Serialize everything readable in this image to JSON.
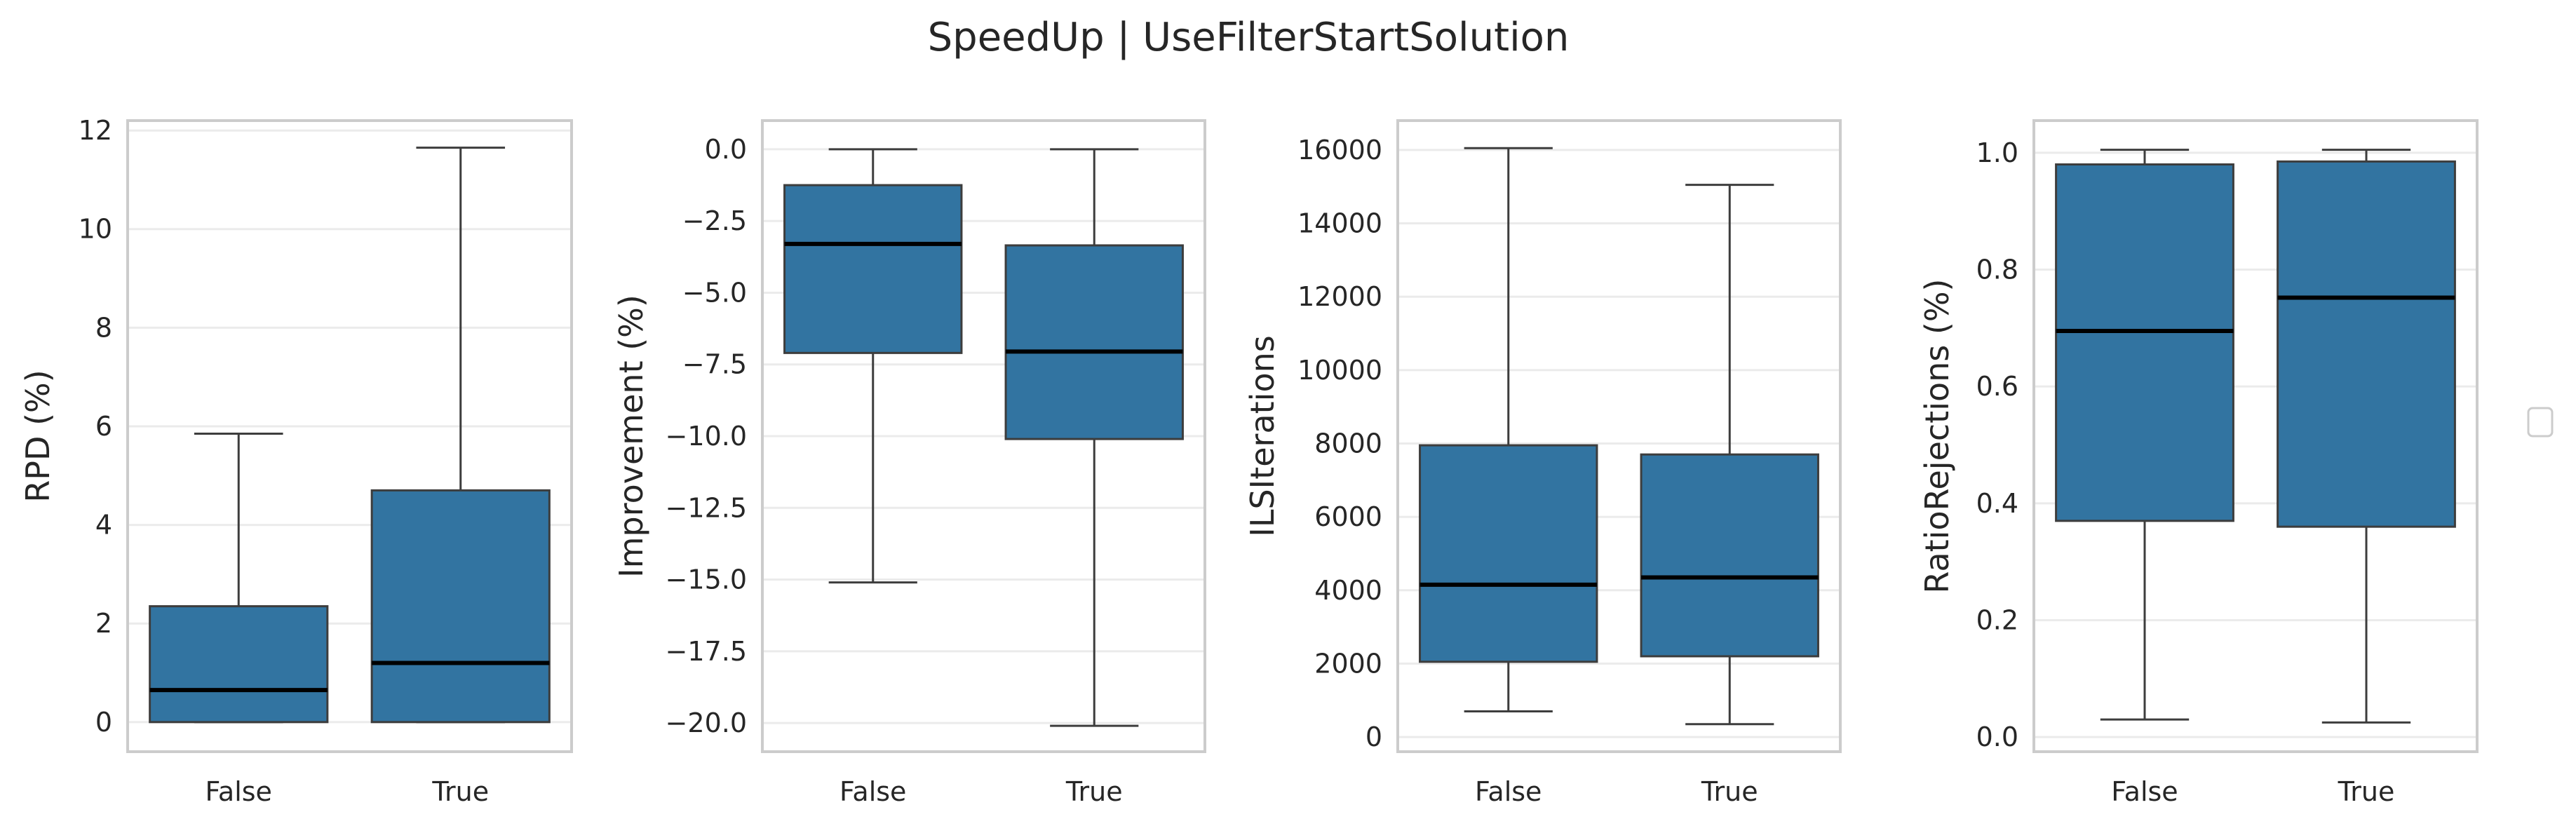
{
  "suptitle": "SpeedUp | UseFilterStartSolution",
  "chart_data": [
    {
      "type": "box",
      "xlabel": "",
      "ylabel": "RPD (%)",
      "categories": [
        "False",
        "True"
      ],
      "ylim": [
        -0.6,
        12.2
      ],
      "yticks": [
        0,
        2,
        4,
        6,
        8,
        10,
        12
      ],
      "ytick_labels": [
        "0",
        "2",
        "4",
        "6",
        "8",
        "10",
        "12"
      ],
      "boxes": [
        {
          "category": "False",
          "whisker_low": 0.0,
          "q1": 0.0,
          "median": 0.65,
          "q3": 2.35,
          "whisker_high": 5.85
        },
        {
          "category": "True",
          "whisker_low": 0.0,
          "q1": 0.0,
          "median": 1.2,
          "q3": 4.7,
          "whisker_high": 11.65
        }
      ],
      "grid": "y"
    },
    {
      "type": "box",
      "xlabel": "",
      "ylabel": "Improvement (%)",
      "categories": [
        "False",
        "True"
      ],
      "ylim": [
        -21.0,
        1.0
      ],
      "yticks": [
        0.0,
        -2.5,
        -5.0,
        -7.5,
        -10.0,
        -12.5,
        -15.0,
        -17.5,
        -20.0
      ],
      "ytick_labels": [
        "0.0",
        "−2.5",
        "−5.0",
        "−7.5",
        "−10.0",
        "−12.5",
        "−15.0",
        "−17.5",
        "−20.0"
      ],
      "boxes": [
        {
          "category": "False",
          "whisker_low": -15.1,
          "q1": -7.1,
          "median": -3.3,
          "q3": -1.25,
          "whisker_high": 0.0
        },
        {
          "category": "True",
          "whisker_low": -20.1,
          "q1": -10.1,
          "median": -7.05,
          "q3": -3.35,
          "whisker_high": 0.0
        }
      ],
      "grid": "y"
    },
    {
      "type": "box",
      "xlabel": "",
      "ylabel": "ILSIterations",
      "categories": [
        "False",
        "True"
      ],
      "ylim": [
        -400,
        16800
      ],
      "yticks": [
        0,
        2000,
        4000,
        6000,
        8000,
        10000,
        12000,
        14000,
        16000
      ],
      "ytick_labels": [
        "0",
        "2000",
        "4000",
        "6000",
        "8000",
        "10000",
        "12000",
        "14000",
        "16000"
      ],
      "boxes": [
        {
          "category": "False",
          "whisker_low": 700,
          "q1": 2050,
          "median": 4150,
          "q3": 7950,
          "whisker_high": 16050
        },
        {
          "category": "True",
          "whisker_low": 350,
          "q1": 2200,
          "median": 4350,
          "q3": 7700,
          "whisker_high": 15050
        }
      ],
      "grid": "y"
    },
    {
      "type": "box",
      "xlabel": "",
      "ylabel": "RatioRejections (%)",
      "categories": [
        "False",
        "True"
      ],
      "ylim": [
        -0.025,
        1.055
      ],
      "yticks": [
        0.0,
        0.2,
        0.4,
        0.6,
        0.8,
        1.0
      ],
      "ytick_labels": [
        "0.0",
        "0.2",
        "0.4",
        "0.6",
        "0.8",
        "1.0"
      ],
      "boxes": [
        {
          "category": "False",
          "whisker_low": 0.03,
          "q1": 0.37,
          "median": 0.695,
          "q3": 0.98,
          "whisker_high": 1.005
        },
        {
          "category": "True",
          "whisker_low": 0.025,
          "q1": 0.36,
          "median": 0.752,
          "q3": 0.985,
          "whisker_high": 1.005
        }
      ],
      "grid": "y"
    }
  ],
  "colors": {
    "box_fill": "#3274a1",
    "box_edge": "#3d3d3d",
    "median": "#000000",
    "whisker": "#3d3d3d",
    "grid": "#ebebeb",
    "spine": "#cccccc",
    "text": "#262626"
  },
  "legend": {
    "placement": "right",
    "entries": []
  }
}
